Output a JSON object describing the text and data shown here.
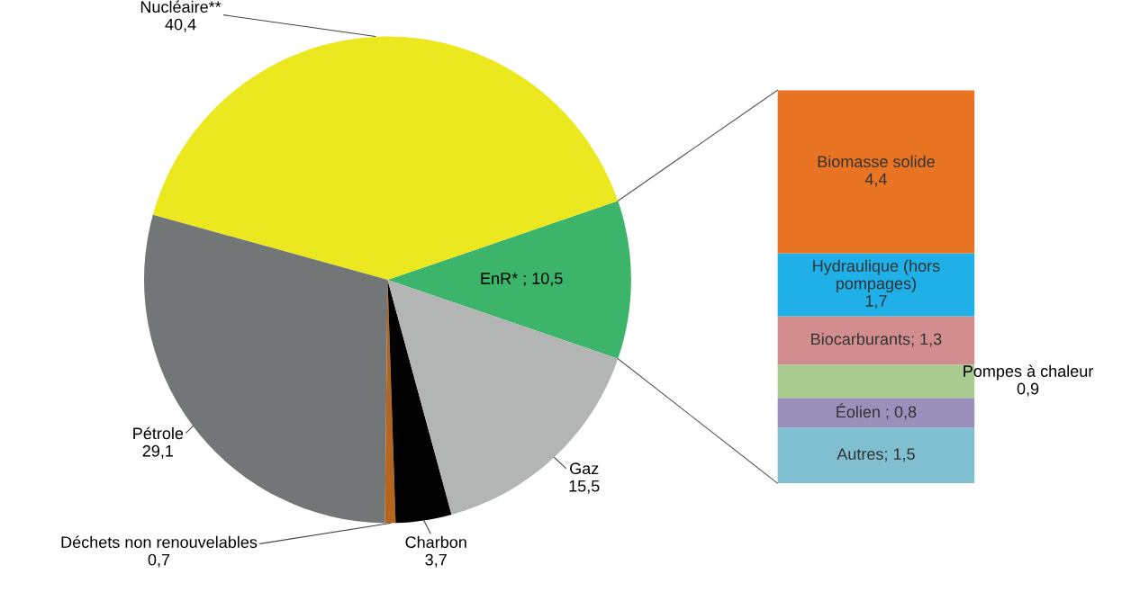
{
  "chart_data": [
    {
      "type": "pie",
      "categories": [
        null,
        null,
        null,
        null,
        null,
        null
      ],
      "values": [
        10.5,
        40.4,
        29.1,
        0.7,
        3.7,
        15.5
      ],
      "colors": [
        "#3cb56a",
        "#ece820",
        "#737677",
        "#b5651d",
        "#000000",
        "#b3b5b5"
      ],
      "value_labels": [
        "EnR* ; 10,5",
        "Nucléaire**\n40,4",
        "Pétrole\n29,1",
        "Déchets non renouvelables\n0,7",
        "Charbon\n3,7",
        "Gaz\n15,5"
      ]
    },
    {
      "type": "bar",
      "stacked": true,
      "categories": [
        null
      ],
      "series": [
        {
          "color": "#7fbfcf",
          "values": [
            1.5
          ],
          "value_labels": [
            "Autres; 1,5"
          ]
        },
        {
          "color": "#9b8fbc",
          "values": [
            0.8
          ],
          "value_labels": [
            "Éolien ; 0,8"
          ]
        },
        {
          "color": "#a9cb8f",
          "values": [
            0.9
          ],
          "value_labels": [
            null
          ]
        },
        {
          "color": "#d28e8e",
          "values": [
            1.3
          ],
          "value_labels": [
            "Biocarburants; 1,3"
          ]
        },
        {
          "color": "#1eb0e6",
          "values": [
            1.7
          ],
          "value_labels": [
            "Hydraulique (hors\npompages)\n1,7"
          ]
        },
        {
          "color": "#e87424",
          "values": [
            4.4
          ],
          "value_labels": [
            "Biomasse solide\n4,4"
          ]
        }
      ],
      "annotations": [
        "Pompes à chaleur\n0,9"
      ]
    }
  ]
}
